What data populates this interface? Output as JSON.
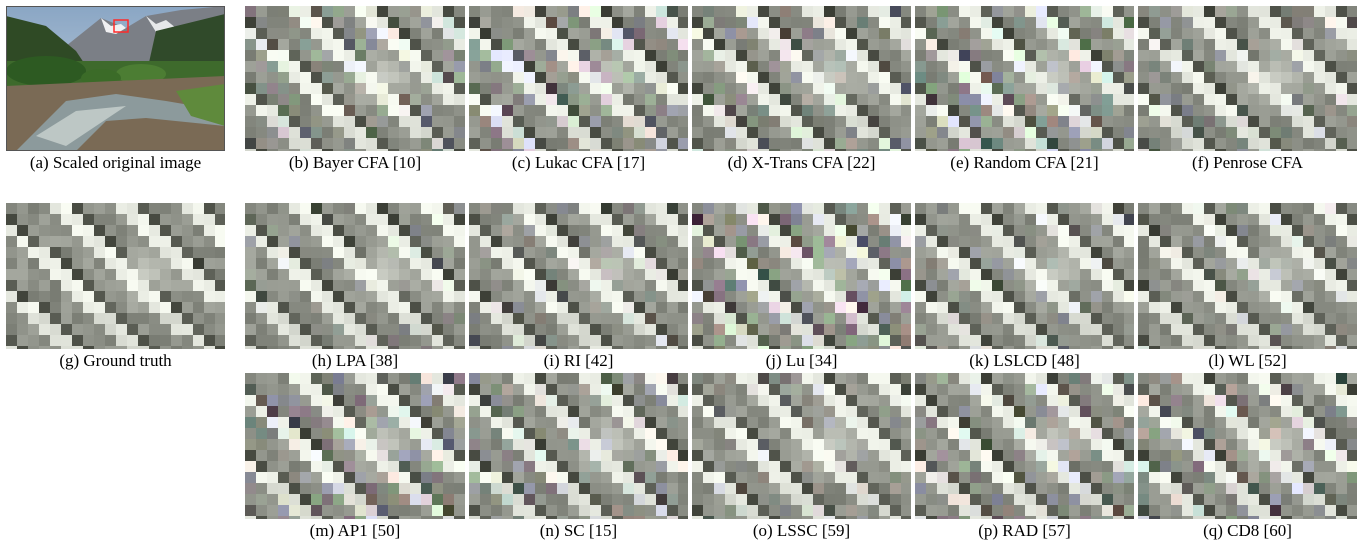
{
  "figure": {
    "panels": [
      {
        "id": "a",
        "caption": "(a) Scaled original image",
        "kind": "scene"
      },
      {
        "id": "b",
        "caption": "(b) Bayer CFA [10]",
        "kind": "patch"
      },
      {
        "id": "c",
        "caption": "(c) Lukac CFA [17]",
        "kind": "patch"
      },
      {
        "id": "d",
        "caption": "(d) X-Trans CFA [22]",
        "kind": "patch"
      },
      {
        "id": "e",
        "caption": "(e) Random CFA [21]",
        "kind": "patch"
      },
      {
        "id": "f",
        "caption": "(f) Penrose CFA",
        "kind": "patch"
      },
      {
        "id": "g",
        "caption": "(g) Ground truth",
        "kind": "patch"
      },
      {
        "id": "h",
        "caption": "(h) LPA [38]",
        "kind": "patch"
      },
      {
        "id": "i",
        "caption": "(i) RI [42]",
        "kind": "patch"
      },
      {
        "id": "j",
        "caption": "(j) Lu [34]",
        "kind": "patch"
      },
      {
        "id": "k",
        "caption": "(k) LSLCD [48]",
        "kind": "patch"
      },
      {
        "id": "l",
        "caption": "(l) WL [52]",
        "kind": "patch"
      },
      {
        "id": "m",
        "caption": "(m) AP1 [50]",
        "kind": "patch"
      },
      {
        "id": "n",
        "caption": "(n) SC [15]",
        "kind": "patch"
      },
      {
        "id": "o",
        "caption": "(o) LSSC [59]",
        "kind": "patch"
      },
      {
        "id": "p",
        "caption": "(p) RAD [57]",
        "kind": "patch"
      },
      {
        "id": "q",
        "caption": "(q) CD8 [60]",
        "kind": "patch"
      }
    ]
  }
}
